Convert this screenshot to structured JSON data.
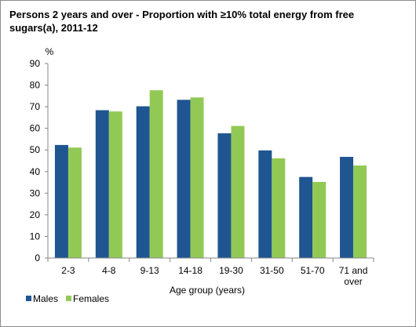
{
  "chart_data": {
    "type": "bar",
    "title": "Persons 2 years and over - Proportion with ≥10% total energy from free sugars(a),  2011-12",
    "ylabel": "%",
    "xlabel": "Age group  (years)",
    "ylim": [
      0,
      90
    ],
    "yticks": [
      0,
      10,
      20,
      30,
      40,
      50,
      60,
      70,
      80,
      90
    ],
    "categories": [
      "2-3",
      "4-8",
      "9-13",
      "14-18",
      "19-30",
      "31-50",
      "51-70",
      "71 and over"
    ],
    "category_labels": [
      [
        "2-3"
      ],
      [
        "4-8"
      ],
      [
        "9-13"
      ],
      [
        "14-18"
      ],
      [
        "19-30"
      ],
      [
        "31-50"
      ],
      [
        "51-70"
      ],
      [
        "71 and",
        "over"
      ]
    ],
    "series": [
      {
        "name": "Males",
        "color": "#1f5591",
        "values": [
          52.3,
          68.4,
          70.2,
          73.2,
          57.7,
          49.8,
          37.5,
          46.8
        ]
      },
      {
        "name": "Females",
        "color": "#92c955",
        "values": [
          51.1,
          67.8,
          77.6,
          74.3,
          61.1,
          46.1,
          35.2,
          42.8
        ]
      }
    ],
    "legend": "bottom-left",
    "grid": false
  }
}
